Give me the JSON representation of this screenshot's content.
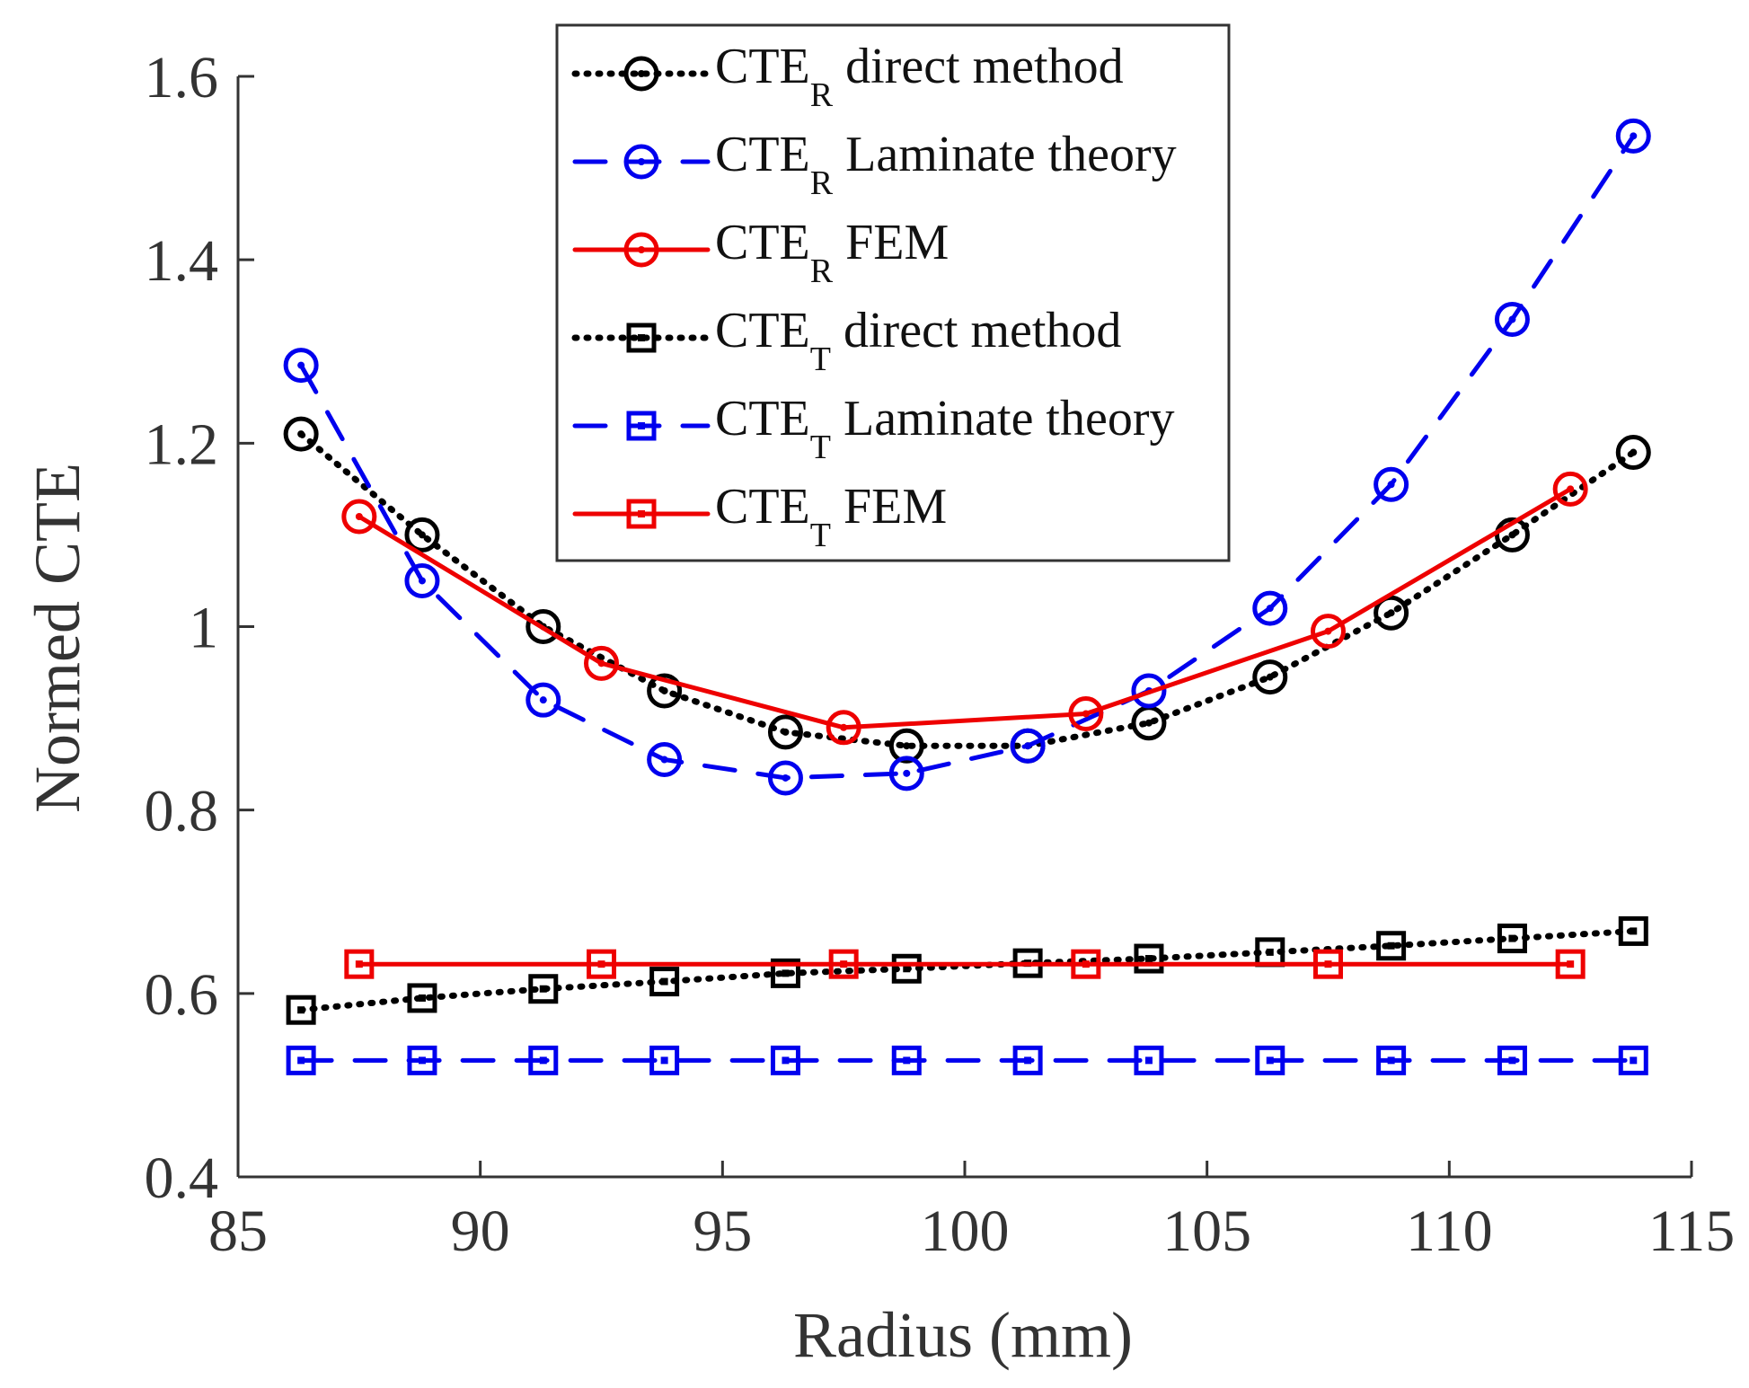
{
  "chart_data": {
    "type": "line",
    "title": "",
    "xlabel": "Radius (mm)",
    "ylabel": "Normed CTE",
    "xlim": [
      85,
      115
    ],
    "ylim": [
      0.4,
      1.6
    ],
    "xticks": [
      "85",
      "90",
      "95",
      "100",
      "105",
      "110",
      "115"
    ],
    "yticks": [
      "0.4",
      "0.6",
      "0.8",
      "1",
      "1.2",
      "1.4",
      "1.6"
    ],
    "grid": false,
    "legend_position": "top-center",
    "series": [
      {
        "name": "CTE_R direct method",
        "label_main": "CTE",
        "label_sub": "R",
        "label_rest": " direct method",
        "color": "#000000",
        "line": "dotted",
        "marker": "circle",
        "x": [
          86.3,
          88.8,
          91.3,
          93.8,
          96.3,
          98.8,
          101.3,
          103.8,
          106.3,
          108.8,
          111.3,
          113.8
        ],
        "y": [
          1.21,
          1.1,
          1.0,
          0.93,
          0.885,
          0.87,
          0.87,
          0.895,
          0.945,
          1.015,
          1.1,
          1.19
        ]
      },
      {
        "name": "CTE_R Laminate theory",
        "label_main": "CTE",
        "label_sub": "R",
        "label_rest": " Laminate theory",
        "color": "#0000ee",
        "line": "dashed",
        "marker": "circle",
        "x": [
          86.3,
          88.8,
          91.3,
          93.8,
          96.3,
          98.8,
          101.3,
          103.8,
          106.3,
          108.8,
          111.3,
          113.8
        ],
        "y": [
          1.285,
          1.05,
          0.92,
          0.855,
          0.835,
          0.84,
          0.87,
          0.93,
          1.02,
          1.155,
          1.335,
          1.535
        ]
      },
      {
        "name": "CTE_R FEM",
        "label_main": "CTE",
        "label_sub": "R",
        "label_rest": " FEM",
        "color": "#ee0000",
        "line": "solid",
        "marker": "circle",
        "x": [
          87.5,
          92.5,
          97.5,
          102.5,
          107.5,
          112.5
        ],
        "y": [
          1.12,
          0.96,
          0.89,
          0.905,
          0.995,
          1.15
        ]
      },
      {
        "name": "CTE_T direct method",
        "label_main": "CTE",
        "label_sub": "T",
        "label_rest": " direct method",
        "color": "#000000",
        "line": "dotted",
        "marker": "square",
        "x": [
          86.3,
          88.8,
          91.3,
          93.8,
          96.3,
          98.8,
          101.3,
          103.8,
          106.3,
          108.8,
          111.3,
          113.8
        ],
        "y": [
          0.582,
          0.595,
          0.605,
          0.613,
          0.622,
          0.627,
          0.633,
          0.638,
          0.645,
          0.652,
          0.66,
          0.668
        ]
      },
      {
        "name": "CTE_T Laminate theory",
        "label_main": "CTE",
        "label_sub": "T",
        "label_rest": " Laminate theory",
        "color": "#0000ee",
        "line": "dashed",
        "marker": "square",
        "x": [
          86.3,
          88.8,
          91.3,
          93.8,
          96.3,
          98.8,
          101.3,
          103.8,
          106.3,
          108.8,
          111.3,
          113.8
        ],
        "y": [
          0.527,
          0.527,
          0.527,
          0.527,
          0.527,
          0.527,
          0.527,
          0.527,
          0.527,
          0.527,
          0.527,
          0.527
        ]
      },
      {
        "name": "CTE_T FEM",
        "label_main": "CTE",
        "label_sub": "T",
        "label_rest": " FEM",
        "color": "#ee0000",
        "line": "solid",
        "marker": "square",
        "x": [
          87.5,
          92.5,
          97.5,
          102.5,
          107.5,
          112.5
        ],
        "y": [
          0.632,
          0.632,
          0.632,
          0.632,
          0.632,
          0.632
        ]
      }
    ]
  }
}
